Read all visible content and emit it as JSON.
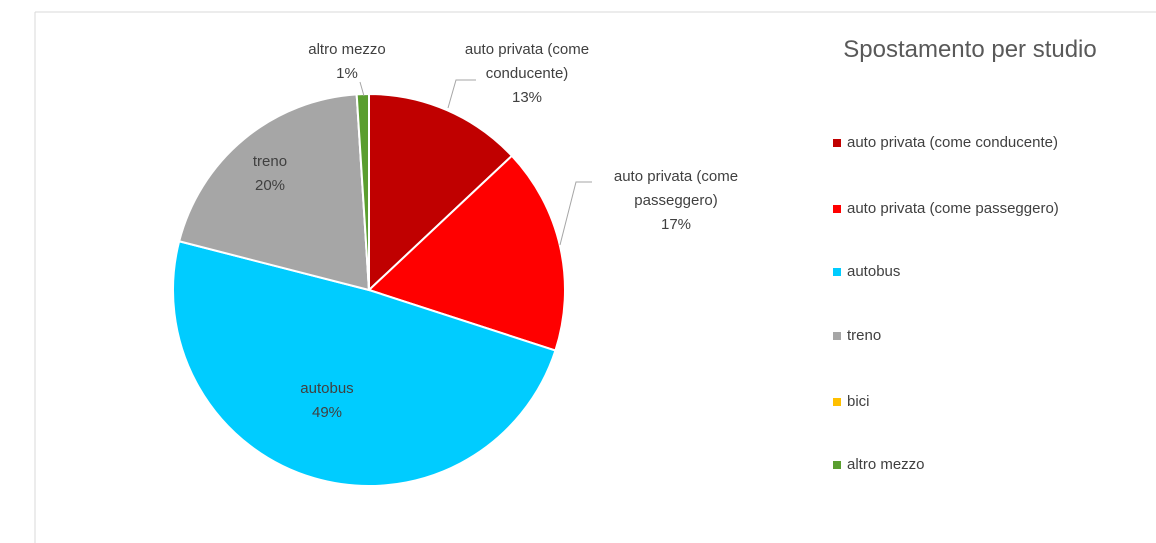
{
  "chart_data": {
    "type": "pie",
    "title": "Spostamento per studio",
    "categories": [
      "auto privata (come conducente)",
      "auto privata (come passeggero)",
      "autobus",
      "treno",
      "bici",
      "altro mezzo"
    ],
    "values": [
      13,
      17,
      49,
      20,
      0,
      1
    ],
    "value_labels": [
      "13%",
      "17%",
      "49%",
      "20%",
      null,
      "1%"
    ],
    "colors": [
      "#c00000",
      "#ff0000",
      "#00ccff",
      "#a6a6a6",
      "#ffc000",
      "#5a9e2f"
    ],
    "legend": "right"
  }
}
